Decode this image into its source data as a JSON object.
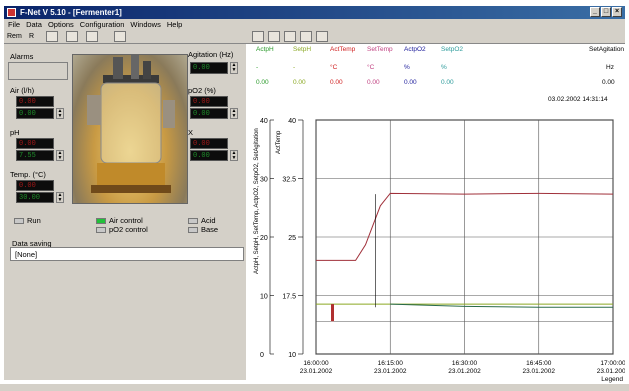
{
  "window": {
    "title": "F-Net V 5.10 - [Fermenter1]",
    "controls": [
      "_",
      "□",
      "×"
    ]
  },
  "menu": [
    "File",
    "Data",
    "Options",
    "Configuration",
    "Windows",
    "Help"
  ],
  "toolbar": {
    "rem": "Rem",
    "r": "R"
  },
  "left": {
    "alarms": "Alarms",
    "agitation": {
      "label": "Agitation (Hz)",
      "value": "0.00"
    },
    "air": {
      "label": "Air (l/h)",
      "set": "0.00",
      "act": "0.00"
    },
    "po2": {
      "label": "pO2 (%)",
      "set": "0.00",
      "act": "0.00"
    },
    "ph": {
      "label": "pH",
      "set": "0.00",
      "act": "7.55"
    },
    "x": {
      "label": "X",
      "set": "0.00",
      "act": "0.00"
    },
    "temp": {
      "label": "Temp. (°C)",
      "set": "0.00",
      "act": "30.00"
    },
    "buttons": {
      "run": "Run",
      "air_control": "Air control",
      "po2_control": "pO2 control",
      "acid": "Acid",
      "base": "Base"
    },
    "data_saving": {
      "label": "Data saving",
      "value": "[None]"
    }
  },
  "header": {
    "cols": [
      {
        "name": "ActpH",
        "unit": "-",
        "value": "0.00",
        "color": "#2a9a2a"
      },
      {
        "name": "SetpH",
        "unit": "-",
        "value": "0.00",
        "color": "#8aa822"
      },
      {
        "name": "ActTemp",
        "unit": "°C",
        "value": "0.00",
        "color": "#d02020"
      },
      {
        "name": "SetTemp",
        "unit": "°C",
        "value": "0.00",
        "color": "#c04080"
      },
      {
        "name": "ActpO2",
        "unit": "%",
        "value": "0.00",
        "color": "#1a1a9a"
      },
      {
        "name": "SetpO2",
        "unit": "%",
        "value": "0.00",
        "color": "#2a9a9a"
      }
    ],
    "setagitation": {
      "name": "SetAgitation",
      "unit": "Hz",
      "value": "0.00",
      "color": "#d02020"
    },
    "timestamp": "03.02.2002   14:31:14"
  },
  "chart_data": {
    "type": "line",
    "ylabel_left": "ActpH, SetpH, SetTemp, ActpO2, SetpO2, SetAgitation",
    "ylabel_right": "ActTemp",
    "yticks_left": [
      "40",
      "30",
      "20",
      "10",
      "0"
    ],
    "yticks_right": [
      "40",
      "32.5",
      "25",
      "17.5",
      "10"
    ],
    "ylim": [
      10,
      40
    ],
    "xticks": [
      {
        "time": "16:00:00",
        "date": "23.01.2002"
      },
      {
        "time": "16:15:00",
        "date": "23.01.2002"
      },
      {
        "time": "16:30:00",
        "date": "23.01.2002"
      },
      {
        "time": "16:45:00",
        "date": "23.01.2002"
      },
      {
        "time": "17:00:00",
        "date": "23.01.2002"
      }
    ],
    "legend": "Legend",
    "series": [
      {
        "color": "#a0303a",
        "x_min": [
          0,
          8,
          10,
          13,
          15,
          30,
          45,
          60
        ],
        "values": [
          22,
          22,
          24,
          29,
          30.6,
          30.5,
          30.6,
          30.5
        ]
      },
      {
        "color": "#8aa822",
        "x_min": [
          0,
          15,
          60
        ],
        "values": [
          16.4,
          16.4,
          16.4
        ]
      },
      {
        "color": "#2a6a4a",
        "x_min": [
          15,
          30,
          45,
          60
        ],
        "values": [
          16.4,
          16.1,
          16.0,
          16.0
        ]
      }
    ]
  }
}
